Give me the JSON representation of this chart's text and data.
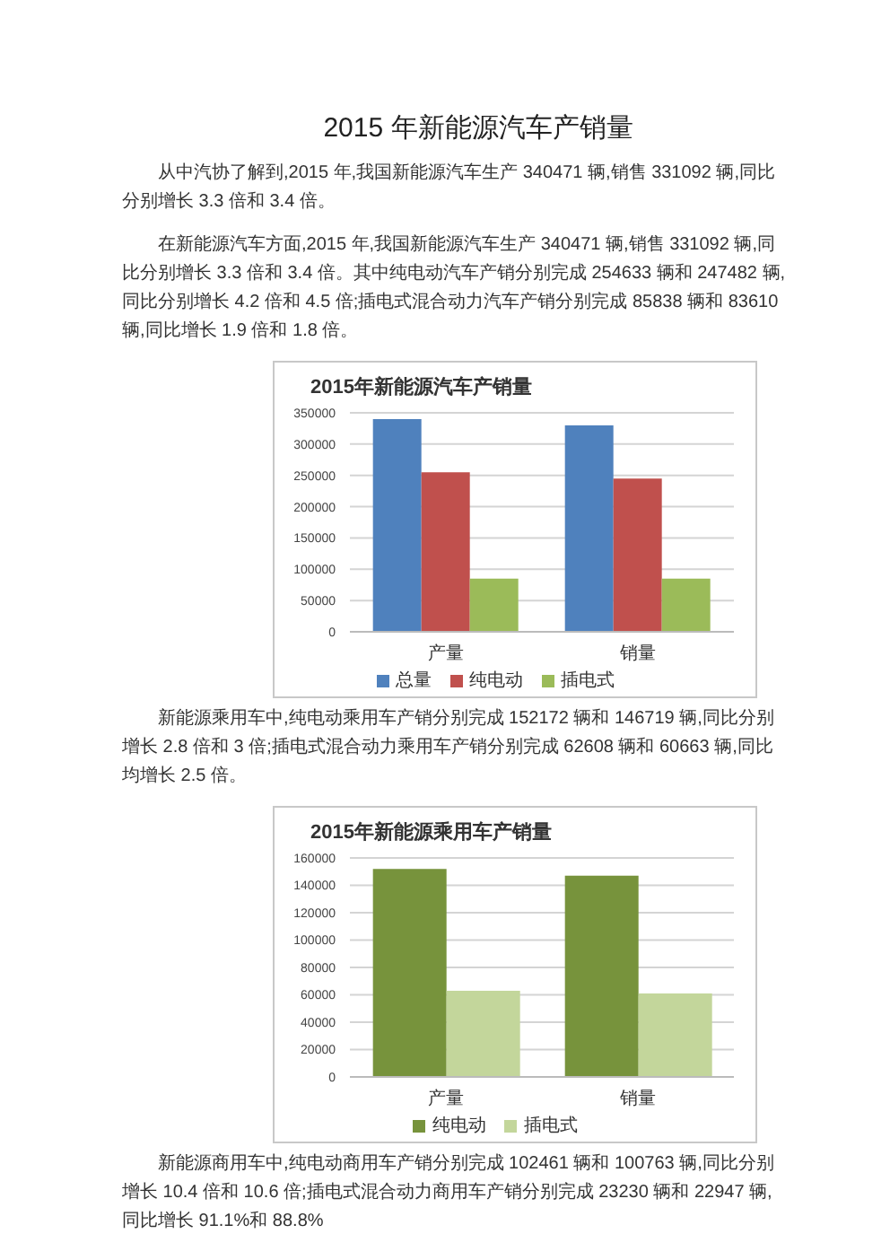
{
  "chart_data": [
    {
      "type": "other",
      "title": "2015 年新能源汽车产销量",
      "annotations": [
        "从中汽协了解到,2015 年,我国新能源汽车生产 340471 辆,销售 331092 辆,同比分别增长 3.3 倍和 3.4 倍。",
        "在新能源汽车方面,2015 年,我国新能源汽车生产 340471 辆,销售 331092 辆,同比分别增长 3.3 倍和 3.4 倍。其中纯电动汽车产销分别完成 254633 辆和 247482 辆,同比分别增长 4.2 倍和 4.5 倍;插电式混合动力汽车产销分别完成 85838 辆和 83610 辆,同比增长 1.9 倍和 1.8 倍。"
      ]
    },
    {
      "type": "bar",
      "title": "2015年新能源汽车产销量",
      "categories": [
        "产量",
        "销量"
      ],
      "series": [
        {
          "name": "总量",
          "color": "#4f81bd",
          "values": [
            340000,
            330000
          ]
        },
        {
          "name": "纯电动",
          "color": "#c0504d",
          "values": [
            255000,
            245000
          ]
        },
        {
          "name": "插电式",
          "color": "#9bbb59",
          "values": [
            85000,
            85000
          ]
        }
      ],
      "ylim": [
        0,
        350000
      ],
      "yticks": [
        0,
        50000,
        100000,
        150000,
        200000,
        250000,
        300000,
        350000
      ],
      "grid": "y",
      "legend": "bottom"
    },
    {
      "type": "other",
      "annotations": [
        "新能源乘用车中,纯电动乘用车产销分别完成 152172 辆和 146719 辆,同比分别增长 2.8 倍和 3 倍;插电式混合动力乘用车产销分别完成 62608 辆和 60663 辆,同比均增长 2.5 倍。"
      ]
    },
    {
      "type": "bar",
      "title": "2015年新能源乘用车产销量",
      "categories": [
        "产量",
        "销量"
      ],
      "series": [
        {
          "name": "纯电动",
          "color": "#77933c",
          "values": [
            152000,
            147000
          ]
        },
        {
          "name": "插电式",
          "color": "#c3d69b",
          "values": [
            63000,
            61000
          ]
        }
      ],
      "ylim": [
        0,
        160000
      ],
      "yticks": [
        0,
        20000,
        40000,
        60000,
        80000,
        100000,
        120000,
        140000,
        160000
      ],
      "grid": "y",
      "legend": "bottom"
    },
    {
      "type": "other",
      "annotations": [
        "新能源商用车中,纯电动商用车产销分别完成 102461 辆和 100763 辆,同比分别增长 10.4 倍和 10.6 倍;插电式混合动力商用车产销分别完成 23230 辆和 22947 辆,同比增长 91.1%和 88.8%"
      ]
    }
  ]
}
